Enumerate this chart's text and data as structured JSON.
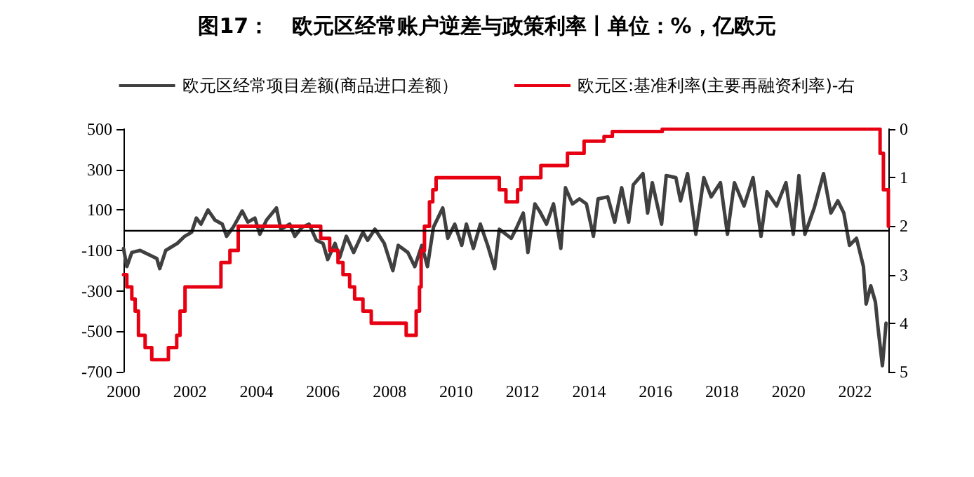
{
  "chart_data": {
    "type": "line",
    "title": "图17：   欧元区经常账户逆差与政策利率丨单位：%，亿欧元",
    "xlim": [
      2000,
      2023
    ],
    "xticks": [
      2000,
      2002,
      2004,
      2006,
      2008,
      2010,
      2012,
      2014,
      2016,
      2018,
      2020,
      2022
    ],
    "ylim": [
      -700,
      500
    ],
    "yticks": [
      -700,
      -500,
      -300,
      -100,
      100,
      300,
      500
    ],
    "y2lim": [
      5,
      0
    ],
    "y2ticks": [
      0,
      1,
      2,
      3,
      4,
      5
    ],
    "legend": "top",
    "grid": false,
    "marker": "none",
    "line_style": "solid",
    "ref_lines": [
      {
        "axis": "y",
        "value": 0,
        "color": "#000000",
        "line_style": "solid"
      }
    ],
    "series": [
      {
        "name": "欧元区经常项目差额(商品进口差额）",
        "type": "line",
        "color": "#404040",
        "x": [
          2000.0,
          2000.1,
          2000.25,
          2000.5,
          2000.75,
          2001.0,
          2001.09,
          2001.27,
          2001.62,
          2001.84,
          2002.05,
          2002.19,
          2002.33,
          2002.54,
          2002.75,
          2002.97,
          2003.1,
          2003.3,
          2003.57,
          2003.74,
          2003.95,
          2004.1,
          2004.3,
          2004.6,
          2004.73,
          2005.0,
          2005.15,
          2005.37,
          2005.58,
          2005.8,
          2006.0,
          2006.14,
          2006.36,
          2006.5,
          2006.7,
          2006.92,
          2007.2,
          2007.34,
          2007.56,
          2007.84,
          2008.1,
          2008.26,
          2008.55,
          2008.76,
          2008.97,
          2009.14,
          2009.32,
          2009.6,
          2009.75,
          2009.96,
          2010.17,
          2010.31,
          2010.52,
          2010.73,
          2010.95,
          2011.16,
          2011.3,
          2011.66,
          2011.8,
          2012.02,
          2012.16,
          2012.37,
          2012.51,
          2012.72,
          2012.93,
          2013.15,
          2013.29,
          2013.5,
          2013.71,
          2013.92,
          2014.13,
          2014.27,
          2014.56,
          2014.77,
          2014.98,
          2015.19,
          2015.33,
          2015.62,
          2015.76,
          2015.9,
          2016.18,
          2016.32,
          2016.61,
          2016.75,
          2016.96,
          2017.21,
          2017.45,
          2017.67,
          2017.95,
          2018.16,
          2018.37,
          2018.66,
          2018.93,
          2019.17,
          2019.35,
          2019.64,
          2019.92,
          2020.14,
          2020.31,
          2020.49,
          2020.77,
          2021.05,
          2021.27,
          2021.48,
          2021.66,
          2021.83,
          2022.04,
          2022.25,
          2022.33,
          2022.47,
          2022.61,
          2022.68,
          2022.82,
          2022.93
        ],
        "values": [
          -90,
          -180,
          -110,
          -100,
          -120,
          -140,
          -190,
          -100,
          -65,
          -30,
          -10,
          60,
          30,
          100,
          50,
          30,
          -30,
          15,
          95,
          40,
          60,
          -20,
          50,
          110,
          5,
          30,
          -30,
          15,
          30,
          -50,
          -65,
          -145,
          -65,
          -135,
          -30,
          -110,
          -10,
          -50,
          5,
          -65,
          -200,
          -75,
          -110,
          -180,
          -75,
          -180,
          15,
          110,
          -40,
          30,
          -75,
          30,
          -90,
          30,
          -75,
          -190,
          5,
          -40,
          5,
          85,
          -110,
          130,
          95,
          30,
          130,
          -90,
          210,
          130,
          155,
          130,
          -30,
          155,
          165,
          40,
          210,
          40,
          225,
          280,
          85,
          235,
          30,
          270,
          260,
          145,
          280,
          -20,
          260,
          165,
          235,
          -20,
          235,
          120,
          260,
          -30,
          190,
          120,
          235,
          -20,
          270,
          -20,
          110,
          280,
          85,
          145,
          85,
          -75,
          -40,
          -180,
          -365,
          -275,
          -355,
          -470,
          -670,
          -460
        ]
      },
      {
        "name": "欧元区:基准利率(主要再融资利率)-右",
        "type": "step",
        "axis": "y2",
        "color": "#e60012",
        "x": [
          2000.0,
          2000.1,
          2000.25,
          2000.35,
          2000.45,
          2000.65,
          2000.85,
          2001.35,
          2001.6,
          2001.7,
          2001.85,
          2002.93,
          2003.2,
          2003.45,
          2005.93,
          2006.2,
          2006.45,
          2006.6,
          2006.8,
          2006.95,
          2007.2,
          2007.45,
          2008.5,
          2008.8,
          2008.9,
          2008.95,
          2009.05,
          2009.2,
          2009.3,
          2009.4,
          2011.3,
          2011.5,
          2011.85,
          2011.95,
          2012.55,
          2013.35,
          2013.85,
          2014.45,
          2014.7,
          2016.2,
          2022.65,
          2022.75,
          2022.85,
          2023.0
        ],
        "values": [
          3.0,
          3.25,
          3.5,
          3.75,
          4.25,
          4.5,
          4.75,
          4.5,
          4.25,
          3.75,
          3.25,
          2.75,
          2.5,
          2.0,
          2.25,
          2.5,
          2.75,
          3.0,
          3.25,
          3.5,
          3.75,
          4.0,
          4.25,
          3.75,
          3.25,
          2.5,
          2.0,
          1.5,
          1.25,
          1.0,
          1.25,
          1.5,
          1.25,
          1.0,
          0.75,
          0.5,
          0.25,
          0.15,
          0.05,
          0.0,
          0.0,
          0.5,
          1.25,
          2.0
        ]
      }
    ]
  }
}
